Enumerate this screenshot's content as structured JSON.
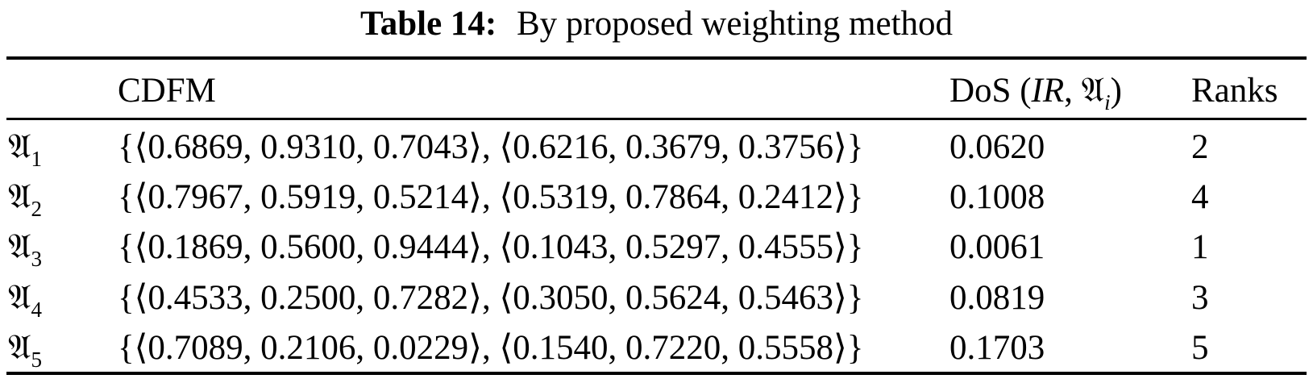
{
  "title": {
    "label": "Table 14:",
    "text": "By proposed weighting method"
  },
  "table": {
    "headers": {
      "cdfm": "CDFM",
      "dos_prefix": "DoS (",
      "dos_ir": "IR",
      "dos_sep": ", ",
      "dos_symbol": "𝔄",
      "dos_sub": "i",
      "dos_suffix": ")",
      "ranks": "Ranks"
    },
    "rows": [
      {
        "symbol": "𝔄",
        "sub": "1",
        "cdfm": "{⟨0.6869, 0.9310, 0.7043⟩, ⟨0.6216, 0.3679, 0.3756⟩}",
        "dos": "0.0620",
        "rank": "2"
      },
      {
        "symbol": "𝔄",
        "sub": "2",
        "cdfm": "{⟨0.7967, 0.5919, 0.5214⟩, ⟨0.5319, 0.7864, 0.2412⟩}",
        "dos": "0.1008",
        "rank": "4"
      },
      {
        "symbol": "𝔄",
        "sub": "3",
        "cdfm": "{⟨0.1869, 0.5600, 0.9444⟩, ⟨0.1043, 0.5297, 0.4555⟩}",
        "dos": "0.0061",
        "rank": "1"
      },
      {
        "symbol": "𝔄",
        "sub": "4",
        "cdfm": "{⟨0.4533, 0.2500, 0.7282⟩, ⟨0.3050, 0.5624, 0.5463⟩}",
        "dos": "0.0819",
        "rank": "3"
      },
      {
        "symbol": "𝔄",
        "sub": "5",
        "cdfm": "{⟨0.7089, 0.2106, 0.0229⟩, ⟨0.1540, 0.7220, 0.5558⟩}",
        "dos": "0.1703",
        "rank": "5"
      }
    ]
  }
}
